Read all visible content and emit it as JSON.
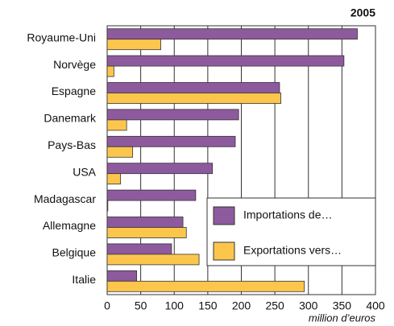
{
  "chart_data": {
    "type": "barh",
    "subtitle": "2005",
    "xlabel": "million d’euros",
    "categories": [
      "Royaume-Uni",
      "Norvège",
      "Espagne",
      "Danemark",
      "Pays-Bas",
      "USA",
      "Madagascar",
      "Allemagne",
      "Belgique",
      "Italie"
    ],
    "series": [
      {
        "name": "Importations de…",
        "color": "#8e5a9e",
        "values": [
          373,
          353,
          257,
          196,
          191,
          157,
          132,
          113,
          96,
          44
        ]
      },
      {
        "name": "Exportations vers…",
        "color": "#fcc64d",
        "values": [
          80,
          10,
          259,
          29,
          38,
          20,
          1,
          118,
          137,
          294
        ]
      }
    ],
    "xlim": [
      0,
      400
    ],
    "xticks": [
      0,
      50,
      100,
      150,
      200,
      250,
      300,
      350,
      400
    ],
    "grid": true,
    "legend": "lower right"
  }
}
